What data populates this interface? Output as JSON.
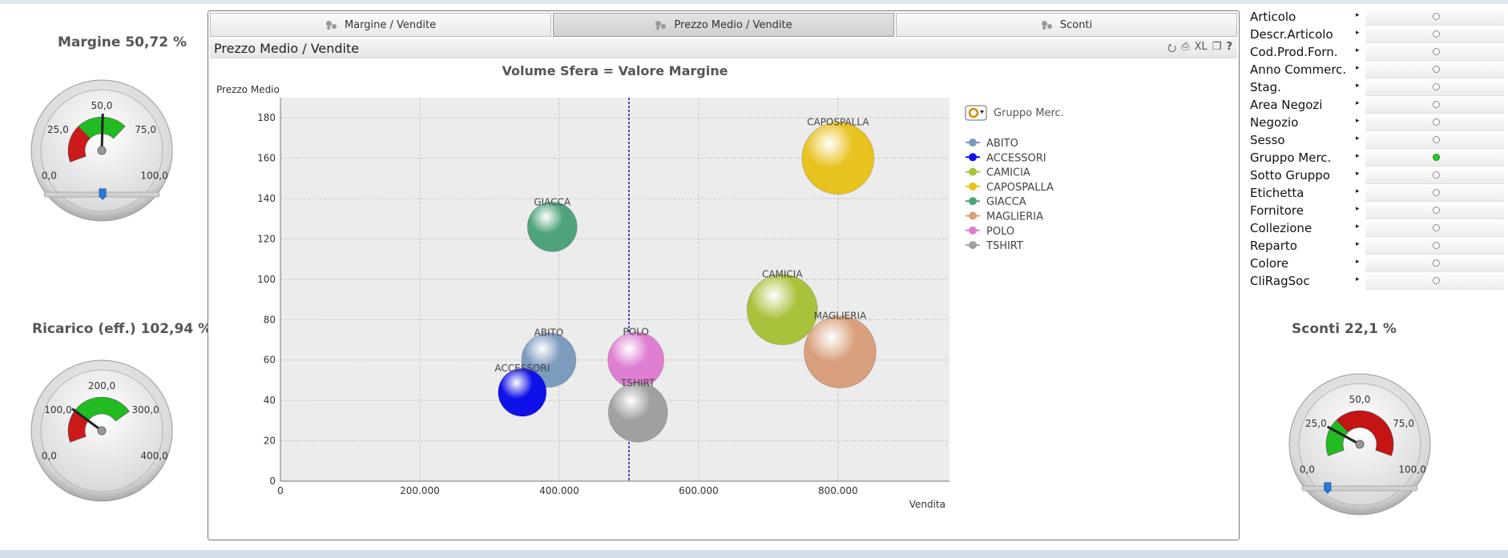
{
  "gauges": [
    {
      "id": "margine",
      "title": "Margine 50,72 %",
      "value": 50.72,
      "min": 0,
      "max": 100,
      "ticks": [
        "0,0",
        "25,0",
        "50,0",
        "75,0",
        "100,0"
      ],
      "red_to": 0.3,
      "green_to": 0.7,
      "slider": true
    },
    {
      "id": "ricarico",
      "title": "Ricarico (eff.) 102,94 %",
      "value": 102.94,
      "min": 0,
      "max": 400,
      "ticks": [
        "0,0",
        "100,0",
        "200,0",
        "300,0",
        "400,0"
      ],
      "red_to": 0.25,
      "green_to": 0.75,
      "slider": false
    },
    {
      "id": "sconti",
      "title": "Sconti 22,1 %",
      "value": 22.1,
      "min": 0,
      "max": 100,
      "ticks": [
        "0,0",
        "25,0",
        "50,0",
        "75,0",
        "100,0"
      ],
      "red_to": 1.0,
      "green_to": 0.3,
      "slider": true,
      "green_first": true
    }
  ],
  "tabs": [
    {
      "label": "Margine / Vendite",
      "active": false
    },
    {
      "label": "Prezzo Medio / Vendite",
      "active": true
    },
    {
      "label": "Sconti",
      "active": false
    }
  ],
  "caption": {
    "title": "Prezzo Medio / Vendite",
    "icons": [
      "export-icon",
      "print-icon",
      "XL",
      "copy-icon",
      "?"
    ]
  },
  "chart_data": {
    "type": "scatter",
    "title": "Volume Sfera = Valore Margine",
    "xlabel": "Vendita",
    "ylabel": "Prezzo Medio",
    "xlim": [
      0,
      960000
    ],
    "ylim": [
      0,
      190
    ],
    "x_ticks": [
      0,
      200000,
      400000,
      600000,
      800000
    ],
    "x_tick_labels": [
      "0",
      "200.000",
      "400.000",
      "600.000",
      "800.000"
    ],
    "y_ticks": [
      0,
      20,
      40,
      60,
      80,
      100,
      120,
      140,
      160,
      180
    ],
    "reference_line_x": 500000,
    "grid": true,
    "legend_title": "Gruppo Merc.",
    "legend_position": "right",
    "points": [
      {
        "name": "ABITO",
        "x": 385000,
        "y": 60,
        "size": 34,
        "color": "#7d9bbd"
      },
      {
        "name": "ACCESSORI",
        "x": 347000,
        "y": 44,
        "size": 30,
        "color": "#1010e8"
      },
      {
        "name": "CAMICIA",
        "x": 720000,
        "y": 85,
        "size": 44,
        "color": "#a9c23c"
      },
      {
        "name": "CAPOSPALLA",
        "x": 800000,
        "y": 160,
        "size": 45,
        "color": "#e8c21f"
      },
      {
        "name": "GIACCA",
        "x": 390000,
        "y": 126,
        "size": 31,
        "color": "#4fa37c"
      },
      {
        "name": "MAGLIERIA",
        "x": 803000,
        "y": 64,
        "size": 45,
        "color": "#d8a07c"
      },
      {
        "name": "POLO",
        "x": 510000,
        "y": 60,
        "size": 35,
        "color": "#df7fd2"
      },
      {
        "name": "TSHIRT",
        "x": 513000,
        "y": 34,
        "size": 37,
        "color": "#a0a0a0"
      }
    ]
  },
  "listbox": {
    "items": [
      {
        "label": "Articolo",
        "selected": false
      },
      {
        "label": "Descr.Articolo",
        "selected": false
      },
      {
        "label": "Cod.Prod.Forn.",
        "selected": false
      },
      {
        "label": "Anno Commerc.",
        "selected": false
      },
      {
        "label": "Stag.",
        "selected": false
      },
      {
        "label": "Area Negozi",
        "selected": false
      },
      {
        "label": "Negozio",
        "selected": false
      },
      {
        "label": "Sesso",
        "selected": false
      },
      {
        "label": "Gruppo Merc.",
        "selected": true
      },
      {
        "label": "Sotto Gruppo",
        "selected": false
      },
      {
        "label": "Etichetta",
        "selected": false
      },
      {
        "label": "Fornitore",
        "selected": false
      },
      {
        "label": "Collezione",
        "selected": false
      },
      {
        "label": "Reparto",
        "selected": false
      },
      {
        "label": "Colore",
        "selected": false
      },
      {
        "label": "CliRagSoc",
        "selected": false
      }
    ]
  }
}
